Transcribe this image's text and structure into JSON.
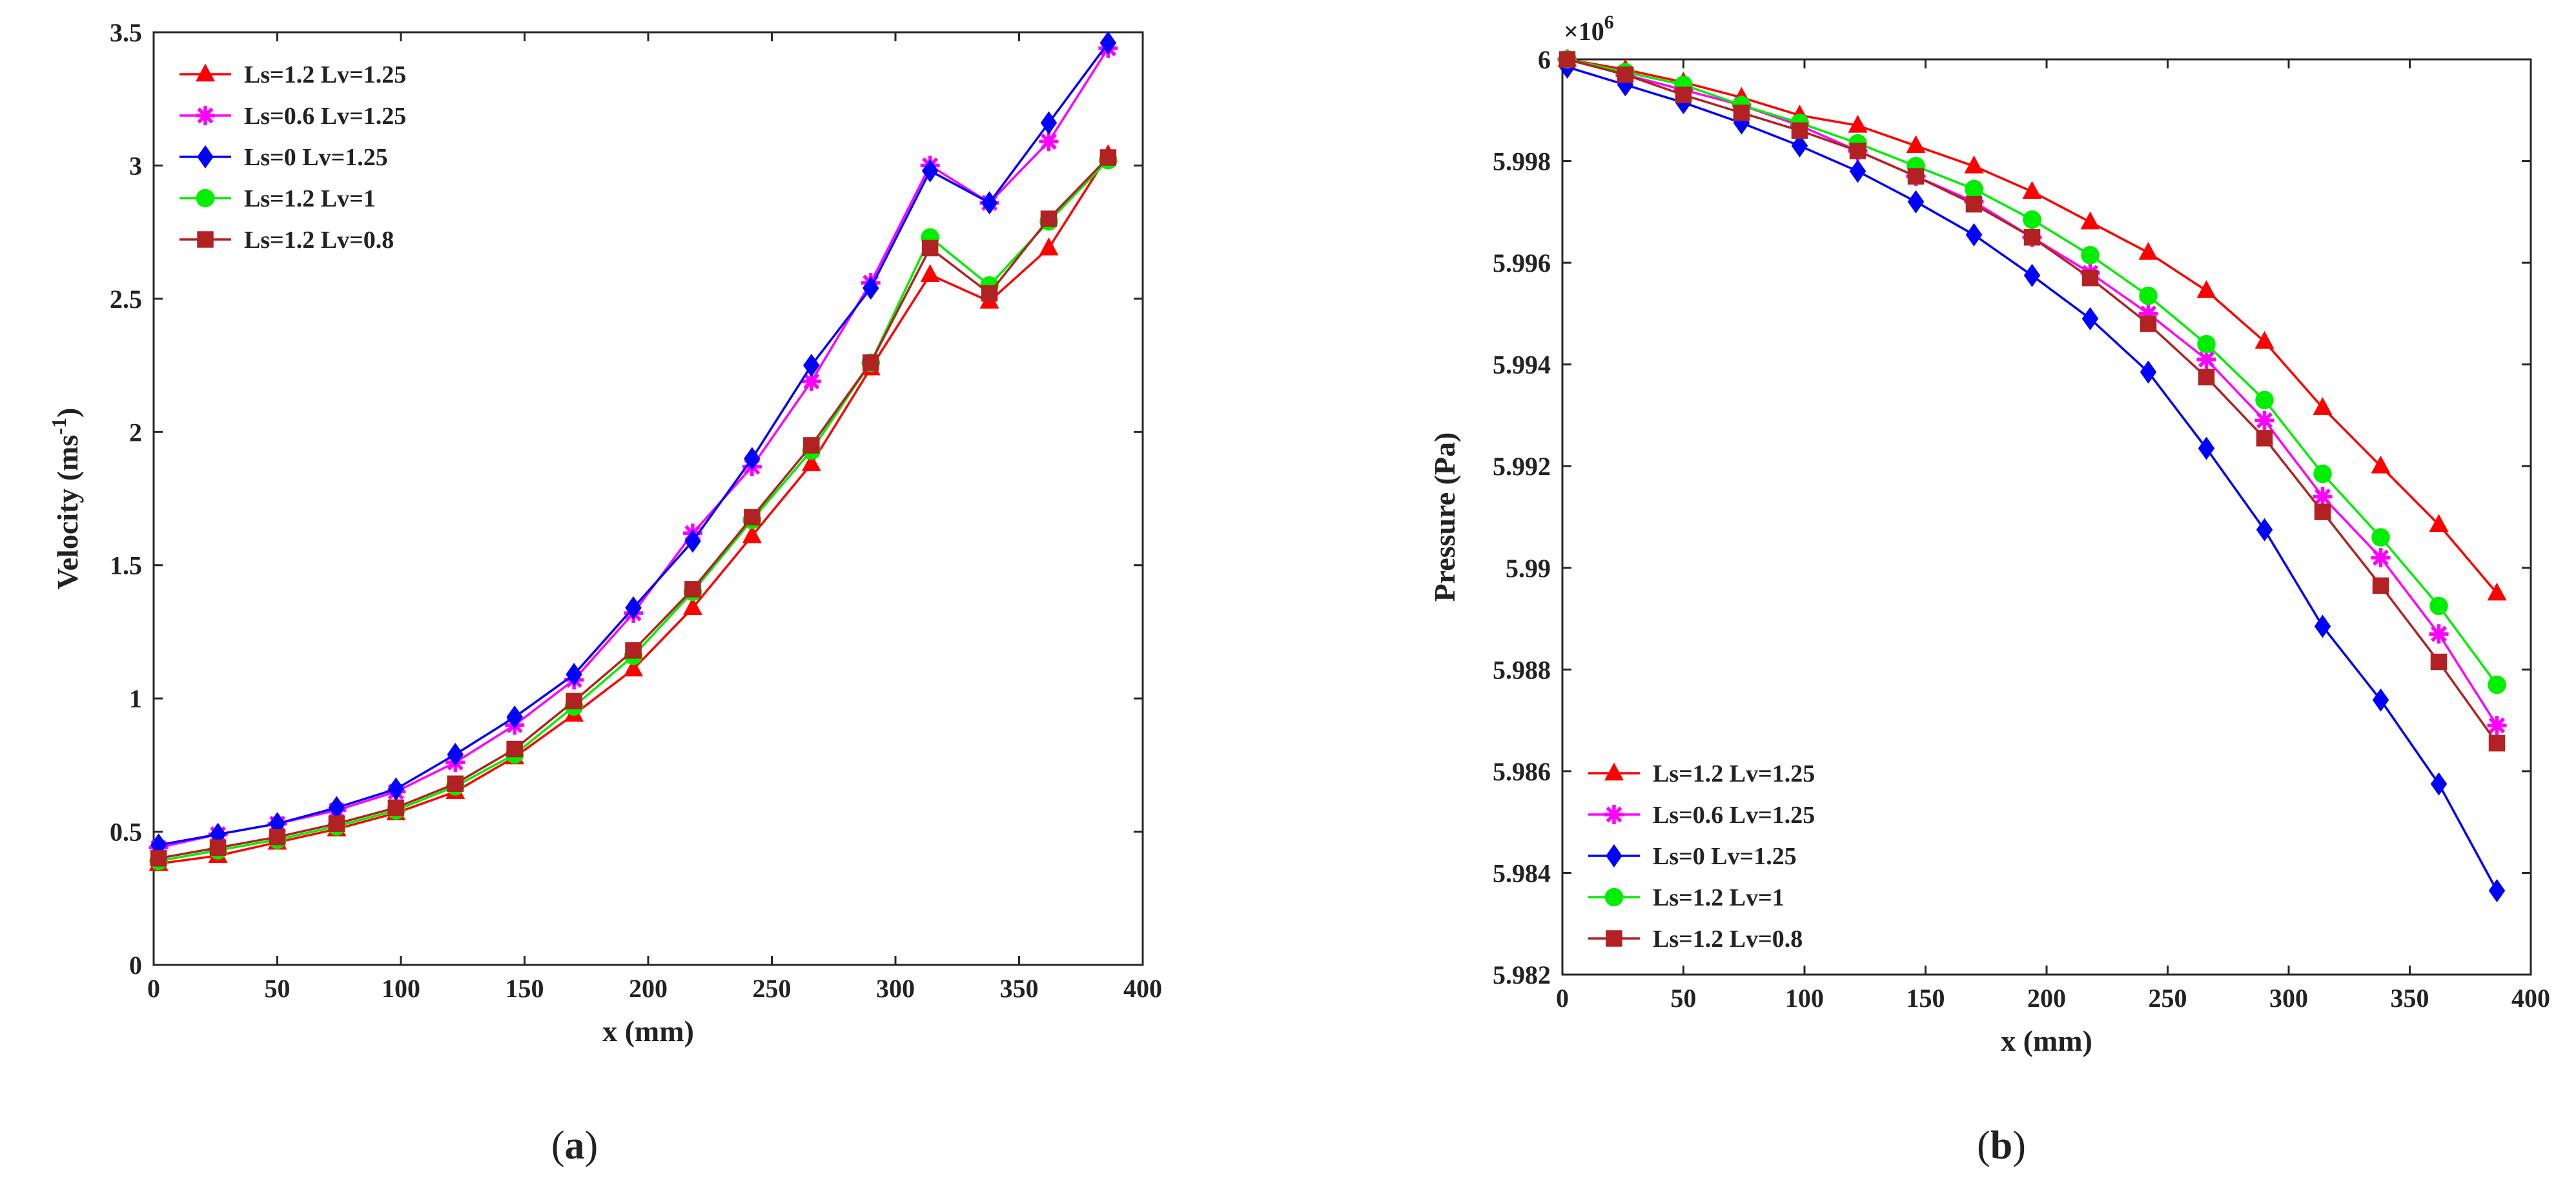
{
  "chart_data": [
    {
      "type": "line",
      "panel_label": "a",
      "xlabel": "x (mm)",
      "ylabel": "Velocity (ms",
      "ylabel_superscript": "-1",
      "ylabel_suffix": ")",
      "xlim": [
        0,
        400
      ],
      "ylim": [
        0,
        3.5
      ],
      "xticks": [
        0,
        50,
        100,
        150,
        200,
        250,
        300,
        350,
        400
      ],
      "xtick_labels": [
        "0",
        "50",
        "100",
        "150",
        "200",
        "250",
        "300",
        "350",
        "400"
      ],
      "yticks": [
        0,
        0.5,
        1,
        1.5,
        2,
        2.5,
        3,
        3.5
      ],
      "ytick_labels": [
        "0",
        "0.5",
        "1",
        "1.5",
        "2",
        "2.5",
        "3",
        "3.5"
      ],
      "legend_position": "top-left",
      "x": [
        2,
        26,
        50,
        74,
        98,
        122,
        146,
        170,
        194,
        218,
        242,
        266,
        290,
        314,
        338,
        362,
        386
      ],
      "series": [
        {
          "name": "Ls=1.2  Lv=1.25",
          "color": "#ff0000",
          "marker": "triangle",
          "values": [
            0.38,
            0.41,
            0.46,
            0.51,
            0.57,
            0.65,
            0.78,
            0.94,
            1.11,
            1.34,
            1.61,
            1.88,
            2.24,
            2.59,
            2.49,
            2.69,
            3.04
          ]
        },
        {
          "name": "Ls=0.6  Lv=1.25",
          "color": "#ff00ff",
          "marker": "star",
          "values": [
            0.44,
            0.49,
            0.53,
            0.58,
            0.65,
            0.76,
            0.9,
            1.07,
            1.32,
            1.62,
            1.87,
            2.19,
            2.56,
            3.0,
            2.86,
            3.09,
            3.44
          ]
        },
        {
          "name": "Ls=0    Lv=1.25",
          "color": "#0000ff",
          "marker": "diamond",
          "values": [
            0.45,
            0.49,
            0.53,
            0.59,
            0.66,
            0.79,
            0.93,
            1.09,
            1.34,
            1.59,
            1.9,
            2.25,
            2.54,
            2.98,
            2.86,
            3.16,
            3.46
          ]
        },
        {
          "name": "Ls=1.2  Lv=1",
          "color": "#00ee00",
          "marker": "circle",
          "values": [
            0.39,
            0.43,
            0.47,
            0.52,
            0.58,
            0.67,
            0.79,
            0.97,
            1.16,
            1.4,
            1.67,
            1.93,
            2.26,
            2.73,
            2.55,
            2.79,
            3.02
          ]
        },
        {
          "name": "Ls=1.2  Lv=0.8",
          "color": "#b22222",
          "marker": "square",
          "values": [
            0.4,
            0.44,
            0.48,
            0.53,
            0.59,
            0.68,
            0.81,
            0.99,
            1.18,
            1.41,
            1.68,
            1.95,
            2.26,
            2.69,
            2.52,
            2.8,
            3.03
          ]
        }
      ]
    },
    {
      "type": "line",
      "panel_label": "b",
      "xlabel": "x (mm)",
      "ylabel": "Pressure (Pa)",
      "exponent_label": "×10",
      "exponent_power": "6",
      "xlim": [
        0,
        400
      ],
      "ylim": [
        5.982,
        6.0
      ],
      "xticks": [
        0,
        50,
        100,
        150,
        200,
        250,
        300,
        350,
        400
      ],
      "xtick_labels": [
        "0",
        "50",
        "100",
        "150",
        "200",
        "250",
        "300",
        "350",
        "400"
      ],
      "yticks": [
        5.982,
        5.984,
        5.986,
        5.988,
        5.99,
        5.992,
        5.994,
        5.996,
        5.998,
        6.0
      ],
      "ytick_labels": [
        "5.982",
        "5.984",
        "5.986",
        "5.988",
        "5.99",
        "5.992",
        "5.994",
        "5.996",
        "5.998",
        "6"
      ],
      "legend_position": "bottom-left",
      "x": [
        2,
        26,
        50,
        74,
        98,
        122,
        146,
        170,
        194,
        218,
        242,
        266,
        290,
        314,
        338,
        362,
        386
      ],
      "series": [
        {
          "name": "Ls=1.2  Lv=1.25",
          "color": "#ff0000",
          "marker": "triangle",
          "values": [
            6.0,
            5.9998,
            5.99955,
            5.99925,
            5.9989,
            5.9987,
            5.9983,
            5.9979,
            5.9974,
            5.9968,
            5.9962,
            5.99545,
            5.99445,
            5.99315,
            5.992,
            5.99085,
            5.9895
          ]
        },
        {
          "name": "Ls=0.6  Lv=1.25",
          "color": "#ff00ff",
          "marker": "star",
          "values": [
            6.0,
            5.9997,
            5.9994,
            5.9991,
            5.9987,
            5.9982,
            5.9977,
            5.9972,
            5.9965,
            5.9958,
            5.995,
            5.9941,
            5.9929,
            5.9914,
            5.9902,
            5.9887,
            5.9869
          ]
        },
        {
          "name": "Ls=0    Lv=1.25",
          "color": "#0000ff",
          "marker": "diamond",
          "values": [
            5.99985,
            5.9995,
            5.99915,
            5.99875,
            5.9983,
            5.9978,
            5.9972,
            5.99655,
            5.99575,
            5.9949,
            5.99385,
            5.99235,
            5.99075,
            5.98885,
            5.9874,
            5.98575,
            5.98365
          ]
        },
        {
          "name": "Ls=1.2  Lv=1",
          "color": "#00ee00",
          "marker": "circle",
          "values": [
            6.0,
            5.99975,
            5.9995,
            5.9991,
            5.99875,
            5.99835,
            5.9979,
            5.99745,
            5.99685,
            5.99615,
            5.99535,
            5.9944,
            5.9933,
            5.99185,
            5.9906,
            5.98925,
            5.9877
          ]
        },
        {
          "name": "Ls=1.2  Lv=0.8",
          "color": "#b22222",
          "marker": "square",
          "values": [
            6.0,
            5.9997,
            5.9993,
            5.99895,
            5.9986,
            5.9982,
            5.9977,
            5.99715,
            5.9965,
            5.9957,
            5.9948,
            5.99375,
            5.99255,
            5.9911,
            5.98965,
            5.98815,
            5.98655
          ]
        }
      ]
    }
  ]
}
